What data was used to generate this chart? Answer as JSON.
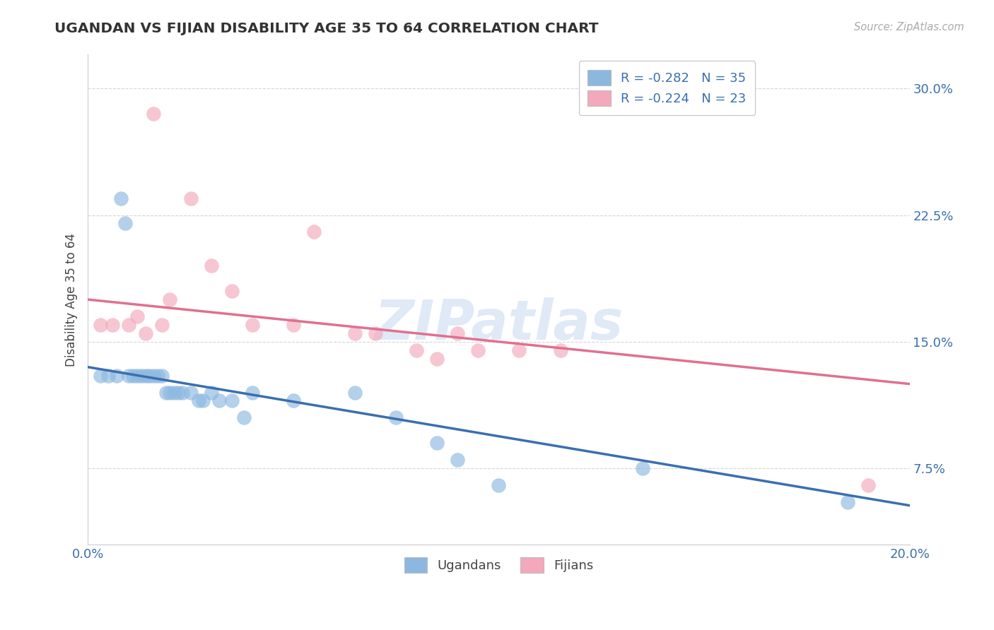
{
  "title": "UGANDAN VS FIJIAN DISABILITY AGE 35 TO 64 CORRELATION CHART",
  "source_text": "Source: ZipAtlas.com",
  "ylabel": "Disability Age 35 to 64",
  "xlim": [
    0.0,
    0.2
  ],
  "ylim": [
    0.03,
    0.32
  ],
  "yticks": [
    0.075,
    0.15,
    0.225,
    0.3
  ],
  "ytick_labels": [
    "7.5%",
    "15.0%",
    "22.5%",
    "30.0%"
  ],
  "xticks": [
    0.0,
    0.05,
    0.1,
    0.15,
    0.2
  ],
  "xtick_labels": [
    "0.0%",
    "",
    "",
    "",
    "20.0%"
  ],
  "ugandan_color": "#8cb8e0",
  "fijian_color": "#f4a8bc",
  "ugandan_line_color": "#3a6faf",
  "fijian_line_color": "#e07090",
  "background_color": "#ffffff",
  "grid_color": "#cccccc",
  "watermark_text": "ZIPatlas",
  "ugandan_x": [
    0.003,
    0.005,
    0.007,
    0.008,
    0.009,
    0.01,
    0.011,
    0.012,
    0.013,
    0.014,
    0.015,
    0.016,
    0.017,
    0.018,
    0.019,
    0.02,
    0.021,
    0.022,
    0.023,
    0.025,
    0.027,
    0.028,
    0.03,
    0.032,
    0.035,
    0.038,
    0.04,
    0.05,
    0.065,
    0.075,
    0.085,
    0.09,
    0.1,
    0.135,
    0.185
  ],
  "ugandan_y": [
    0.13,
    0.13,
    0.13,
    0.235,
    0.22,
    0.13,
    0.13,
    0.13,
    0.13,
    0.13,
    0.13,
    0.13,
    0.13,
    0.13,
    0.12,
    0.12,
    0.12,
    0.12,
    0.12,
    0.12,
    0.115,
    0.115,
    0.12,
    0.115,
    0.115,
    0.105,
    0.12,
    0.115,
    0.12,
    0.105,
    0.09,
    0.08,
    0.065,
    0.075,
    0.055
  ],
  "fijian_x": [
    0.003,
    0.006,
    0.01,
    0.012,
    0.014,
    0.016,
    0.018,
    0.02,
    0.025,
    0.03,
    0.035,
    0.04,
    0.05,
    0.055,
    0.065,
    0.07,
    0.08,
    0.085,
    0.09,
    0.095,
    0.105,
    0.115,
    0.19
  ],
  "fijian_y": [
    0.16,
    0.16,
    0.16,
    0.165,
    0.155,
    0.285,
    0.16,
    0.175,
    0.235,
    0.195,
    0.18,
    0.16,
    0.16,
    0.215,
    0.155,
    0.155,
    0.145,
    0.14,
    0.155,
    0.145,
    0.145,
    0.145,
    0.065
  ],
  "ug_line_x0": 0.0,
  "ug_line_y0": 0.135,
  "ug_line_x1": 0.2,
  "ug_line_y1": 0.053,
  "fj_line_x0": 0.0,
  "fj_line_y0": 0.175,
  "fj_line_x1": 0.2,
  "fj_line_y1": 0.125
}
